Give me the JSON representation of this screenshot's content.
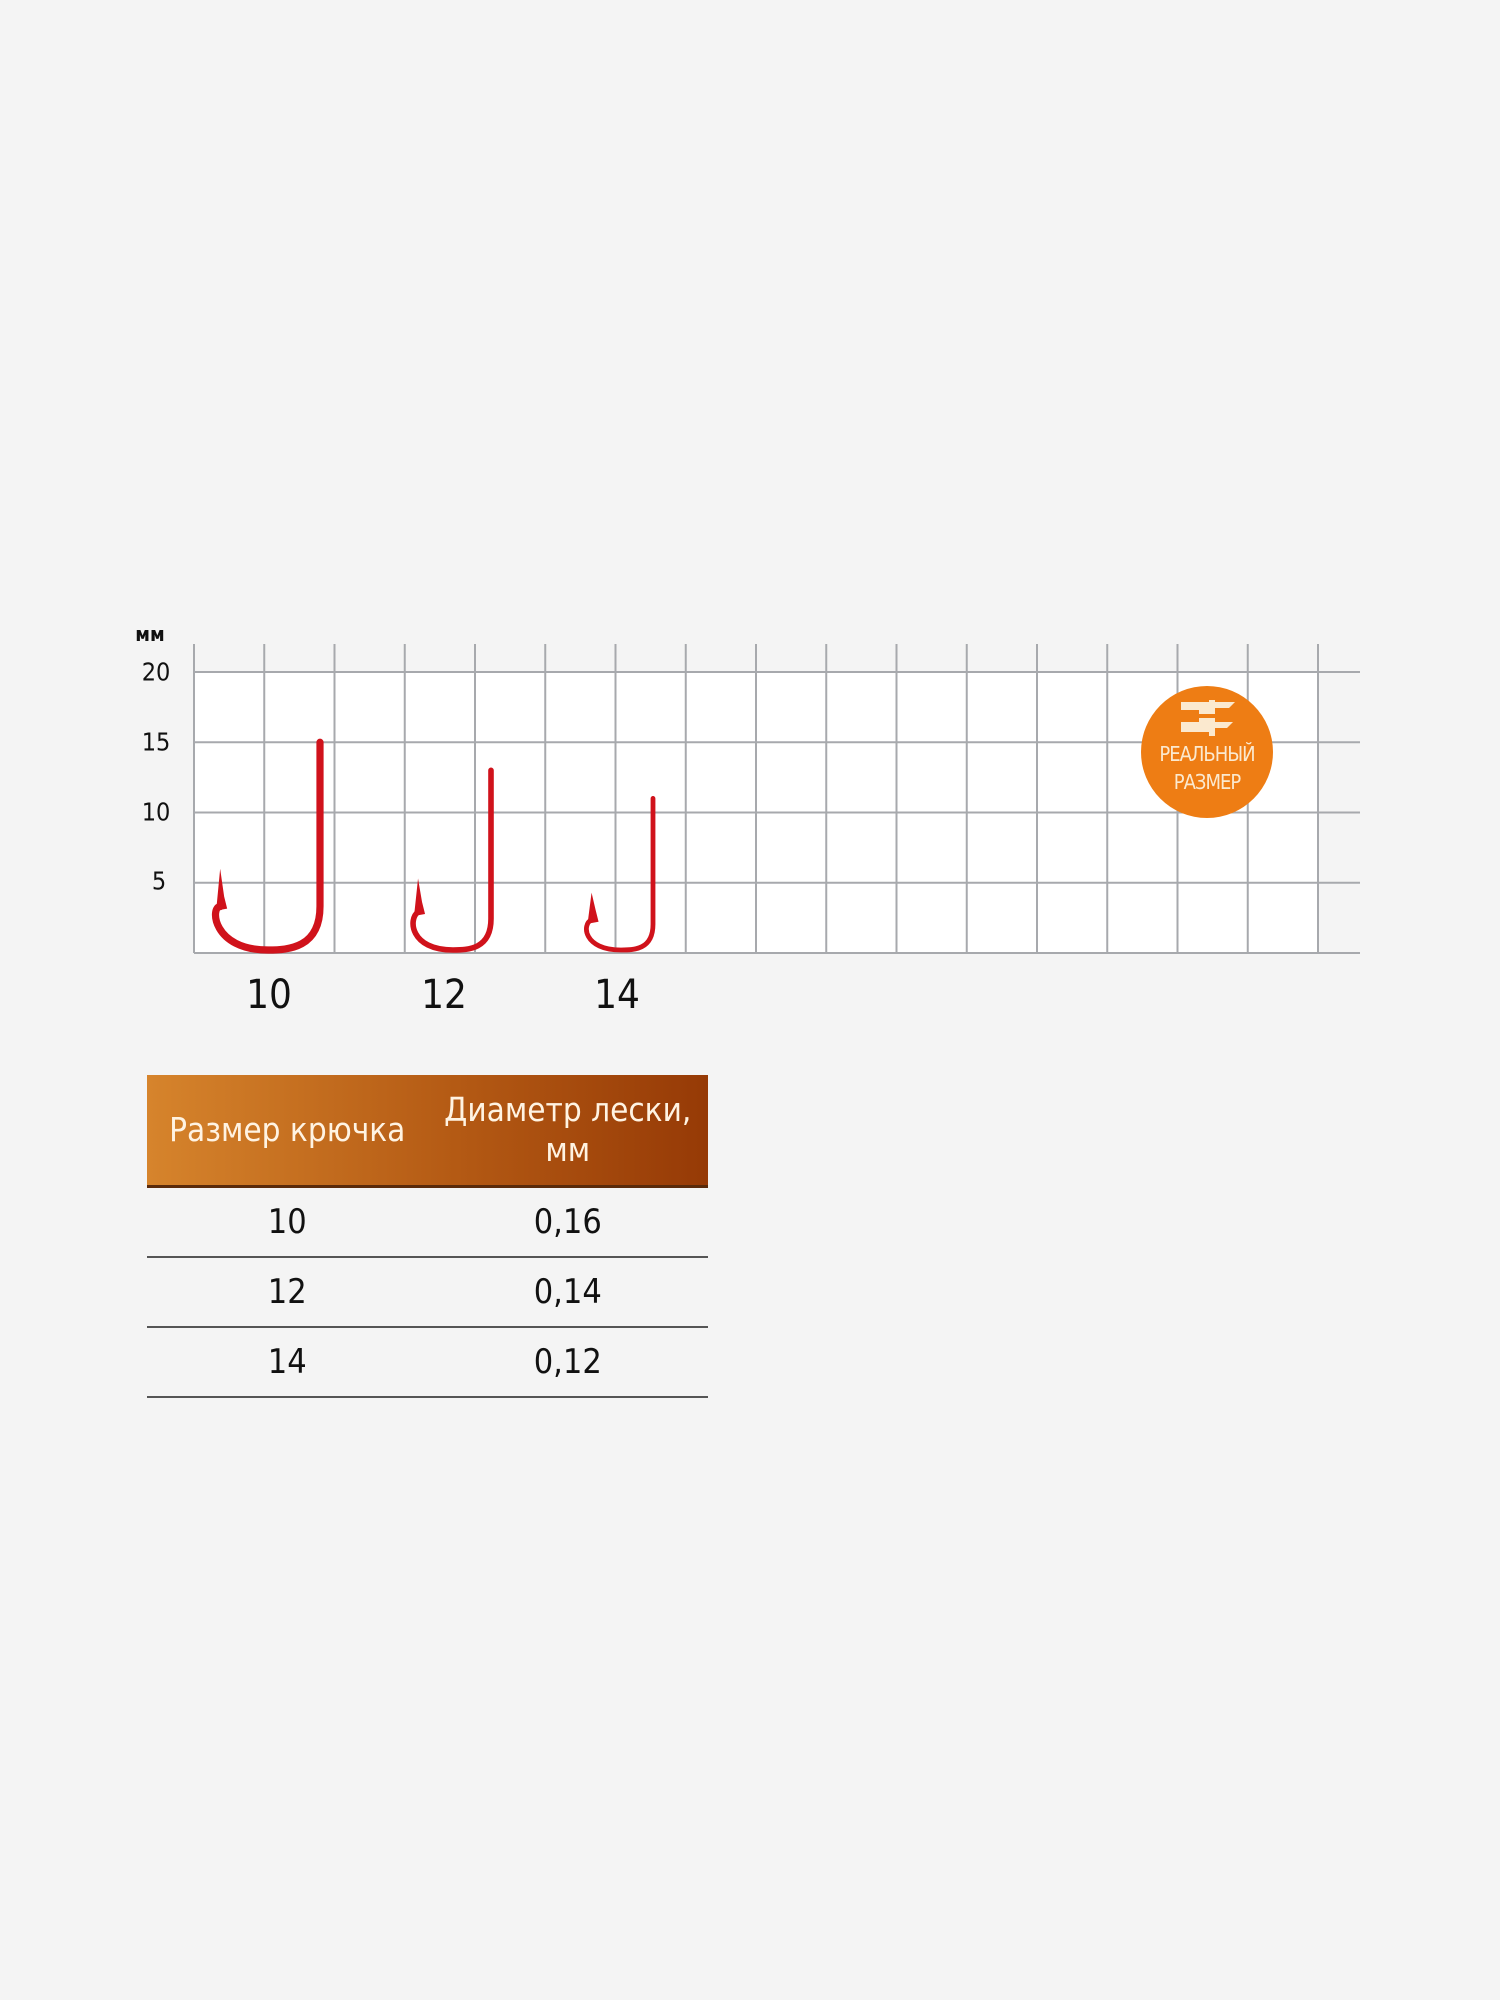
{
  "scale": {
    "unit": "мм",
    "y_ticks": [
      "20",
      "15",
      "10",
      "5"
    ],
    "hooks": [
      {
        "label": "10",
        "shank_mm": 15,
        "point_mm": 6
      },
      {
        "label": "12",
        "shank_mm": 13,
        "point_mm": 5.3
      },
      {
        "label": "14",
        "shank_mm": 11,
        "point_mm": 4.3
      }
    ],
    "hook_color": "#d0121b",
    "grid_color": "#a7a9ad"
  },
  "badge": {
    "line1": "РЕАЛЬНЫЙ",
    "line2": "РАЗМЕР",
    "icon": "ruler-hook-icon",
    "color": "#ee7d14"
  },
  "table": {
    "headers": [
      "Размер крючка",
      "Диаметр лески, мм"
    ],
    "rows": [
      [
        "10",
        "0,16"
      ],
      [
        "12",
        "0,14"
      ],
      [
        "14",
        "0,12"
      ]
    ]
  }
}
